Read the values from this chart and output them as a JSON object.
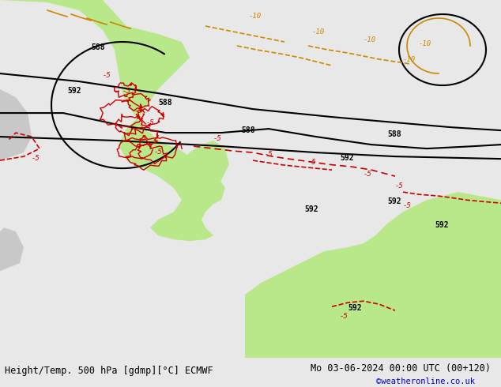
{
  "title_left": "Height/Temp. 500 hPa [gdmp][°C] ECMWF",
  "title_right": "Mo 03-06-2024 00:00 UTC (00+120)",
  "credit": "©weatheronline.co.uk",
  "bg_color": "#e8e8e8",
  "land_green_color": "#b8e88a",
  "land_gray_color": "#c8c8c8",
  "ocean_color": "#e8e8e8",
  "contour_color": "#000000",
  "temp_neg_color": "#cc0000",
  "temp_orange_color": "#cc8800",
  "contour_labels": [
    "588",
    "592",
    "588",
    "588",
    "592",
    "592",
    "592"
  ],
  "temp_labels_neg5": [
    "-5",
    "-5",
    "-5",
    "-5",
    "-5",
    "-5",
    "-5"
  ],
  "temp_labels_neg10": [
    "-10",
    "-10",
    "-10",
    "-10"
  ],
  "fig_width": 6.34,
  "fig_height": 4.9,
  "dpi": 100,
  "bottom_bar_color": "#f0f0f0",
  "title_fontsize": 8.5,
  "credit_color": "#0000cc",
  "credit_fontsize": 7.5
}
